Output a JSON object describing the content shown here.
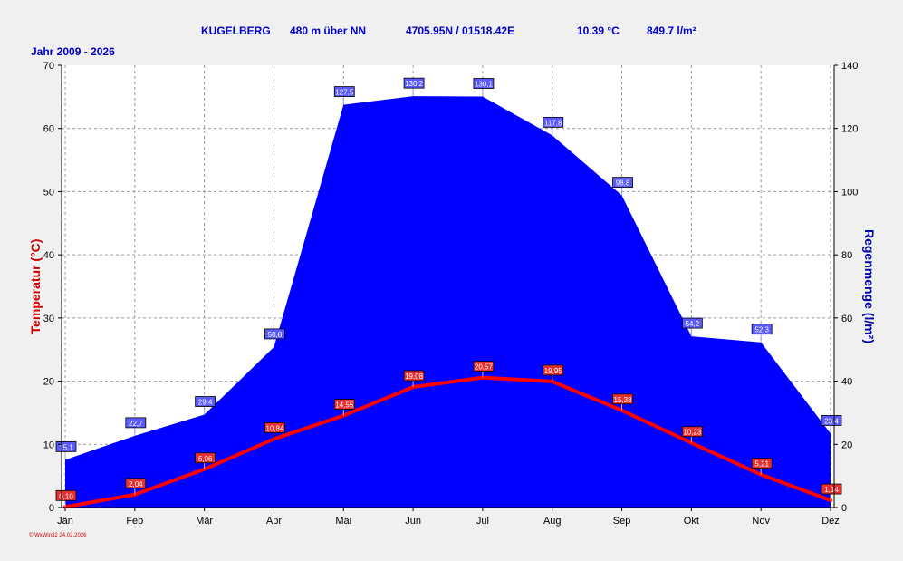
{
  "header": {
    "station": "KUGELBERG",
    "altitude": "480 m über NN",
    "coordinates": "4705.95N / 01518.42E",
    "avg_temp": "10.39 °C",
    "total_rain": "849.7 l/m²",
    "period": "Jahr  2009 - 2026"
  },
  "footer": {
    "credit": "© WxWin32  24.02.2026"
  },
  "colors": {
    "background": "#f0f0f0",
    "plot_bg": "#ffffff",
    "rain_fill": "#0000ff",
    "temp_line": "#ff0000",
    "rain_axis": "#0000aa",
    "temp_axis": "#cc0000",
    "header_text": "#0000cc"
  },
  "chart_data": {
    "type": "area",
    "categories": [
      "Jän",
      "Feb",
      "Mär",
      "Apr",
      "Mai",
      "Jun",
      "Jul",
      "Aug",
      "Sep",
      "Okt",
      "Nov",
      "Dez"
    ],
    "ylabel_left": "Temperatur  (°C)",
    "ylabel_right": "Regenmenge  (l/m²)",
    "ylim_left": [
      0,
      70
    ],
    "ylim_right": [
      0,
      140
    ],
    "yticks_left": [
      "0",
      "10",
      "20",
      "30",
      "40",
      "50",
      "60",
      "70"
    ],
    "yticks_right": [
      "0",
      "20",
      "40",
      "60",
      "80",
      "100",
      "120",
      "140"
    ],
    "grid": true,
    "series": [
      {
        "name": "Regenmenge",
        "axis": "right",
        "kind": "area",
        "values": [
          15.1,
          22.7,
          29.4,
          50.8,
          127.5,
          130.2,
          130.1,
          117.8,
          98.8,
          54.2,
          52.3,
          23.4
        ],
        "labels": [
          "15,1",
          "22,7",
          "29,4",
          "50,8",
          "127,5",
          "130,2",
          "130,1",
          "117,8",
          "98,8",
          "54,2",
          "52,3",
          "23,4"
        ]
      },
      {
        "name": "Temperatur",
        "axis": "left",
        "kind": "line",
        "values": [
          0.1,
          2.04,
          6.06,
          10.84,
          14.55,
          19.08,
          20.57,
          19.95,
          15.38,
          10.23,
          5.21,
          1.14
        ],
        "labels": [
          "0,10",
          "2,04",
          "6,06",
          "10,84",
          "14,55",
          "19,08",
          "20,57",
          "19,95",
          "15,38",
          "10,23",
          "5,21",
          "1,14"
        ]
      }
    ]
  }
}
